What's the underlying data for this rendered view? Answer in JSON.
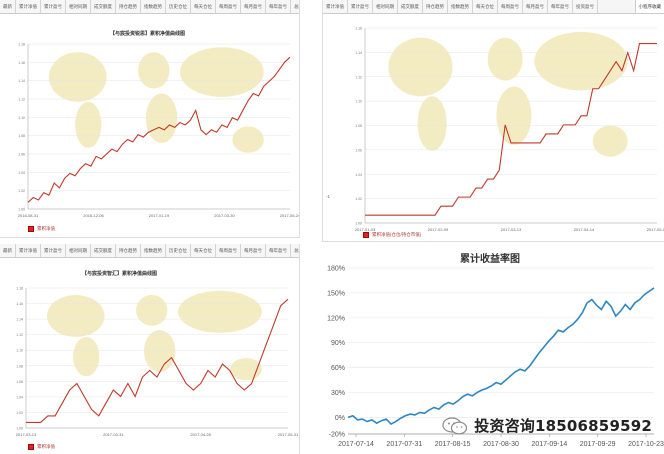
{
  "panel1": {
    "tabs": [
      "最新",
      "累计净值",
      "累计盈亏",
      "相对同期",
      "成交额度",
      "持仓趋势",
      "指数趋势",
      "历史仓位",
      "每天仓位",
      "每周盈亏",
      "每月盈亏",
      "每年盈亏",
      "总结金额",
      "投资盈亏"
    ],
    "end_tab": "收藏量表格",
    "title": "【与宸投资锐思】累积净值曲线图",
    "legend": "累积净值",
    "x_ticks": [
      "2016-08-31",
      "2016-12-06",
      "2017-01-19",
      "2017-03-30",
      "2017-05-24"
    ]
  },
  "panel2": {
    "tabs": [
      "累计净值",
      "累计盈亏",
      "相对同期",
      "成交额度",
      "持仓趋势",
      "指数趋势",
      "每天仓位",
      "每周盈亏",
      "每月盈亏",
      "每年盈亏",
      "投资盈亏"
    ],
    "end_tab": "小程序收藏",
    "legend": "累积净值(仓位/持仓市值)",
    "y_side_label": "-1",
    "x_ticks": [
      "2017-01-03",
      "2017-02-09",
      "2017-03-13",
      "2017-04-14",
      "2017-05-17"
    ]
  },
  "panel3": {
    "tabs": [
      "最新",
      "累计净值",
      "累计盈亏",
      "相对同期",
      "成交额度",
      "持仓趋势",
      "指数趋势",
      "历史仓位",
      "每天仓位",
      "每周盈亏",
      "每月盈亏",
      "每年盈亏",
      "总结金额",
      "投资盈亏"
    ],
    "end_tab": "收藏量表格",
    "title": "【与宸投资智汇】累积净值曲线图",
    "legend": "累积净值",
    "x_ticks": [
      "2017-03-13",
      "2017-03-31",
      "2017-04-28",
      "2017-05-31"
    ]
  },
  "panel4": {
    "title": "累计收益率图",
    "watermark": "投资咨询18506859592"
  },
  "colors": {
    "nav_line": "#c0392b",
    "return_line": "#2e86c1",
    "grid": "#e5e5e5",
    "map": "#f3ecc2"
  },
  "chart_data": [
    {
      "type": "line",
      "title": "【与宸投资锐思】累积净值曲线图",
      "series": [
        {
          "name": "累积净值",
          "values": [
            1.0,
            1.02,
            1.01,
            1.04,
            1.03,
            1.08,
            1.06,
            1.1,
            1.12,
            1.11,
            1.14,
            1.16,
            1.15,
            1.19,
            1.18,
            1.2,
            1.22,
            1.21,
            1.24,
            1.26,
            1.25,
            1.28,
            1.27,
            1.29,
            1.3,
            1.31,
            1.3,
            1.32,
            1.31,
            1.33,
            1.32,
            1.34,
            1.38,
            1.3,
            1.28,
            1.3,
            1.29,
            1.32,
            1.31,
            1.35,
            1.34,
            1.38,
            1.42,
            1.45,
            1.44,
            1.48,
            1.5,
            1.52,
            1.55,
            1.58,
            1.6
          ]
        }
      ],
      "x_ticks": [
        "2016-08-31",
        "2016-12-06",
        "2017-01-19",
        "2017-03-30",
        "2017-05-24"
      ],
      "legend": "top-left bottom"
    },
    {
      "type": "line",
      "series": [
        {
          "name": "累积净值(仓位/持仓市值)",
          "values": [
            0.96,
            0.96,
            0.96,
            0.96,
            0.96,
            0.96,
            0.96,
            0.96,
            0.96,
            0.96,
            0.96,
            0.96,
            0.96,
            0.97,
            0.97,
            0.97,
            0.98,
            0.98,
            0.98,
            0.99,
            0.99,
            1.0,
            1.0,
            1.01,
            1.06,
            1.04,
            1.04,
            1.04,
            1.04,
            1.04,
            1.04,
            1.05,
            1.05,
            1.05,
            1.06,
            1.06,
            1.06,
            1.07,
            1.07,
            1.1,
            1.1,
            1.11,
            1.12,
            1.13,
            1.12,
            1.14,
            1.12,
            1.15,
            1.15,
            1.15,
            1.15
          ]
        }
      ],
      "x_ticks": [
        "2017-01-03",
        "2017-02-09",
        "2017-03-13",
        "2017-04-14",
        "2017-05-17"
      ]
    },
    {
      "type": "line",
      "title": "【与宸投资智汇】累积净值曲线图",
      "series": [
        {
          "name": "累积净值",
          "values": [
            1.0,
            1.0,
            1.0,
            1.01,
            1.01,
            1.03,
            1.05,
            1.06,
            1.04,
            1.02,
            1.01,
            1.03,
            1.05,
            1.04,
            1.06,
            1.04,
            1.07,
            1.08,
            1.07,
            1.09,
            1.1,
            1.08,
            1.06,
            1.05,
            1.06,
            1.08,
            1.07,
            1.09,
            1.08,
            1.06,
            1.05,
            1.06,
            1.09,
            1.12,
            1.15,
            1.18,
            1.19
          ]
        }
      ],
      "x_ticks": [
        "2017-03-13",
        "2017-03-31",
        "2017-04-28",
        "2017-05-31"
      ]
    },
    {
      "type": "line",
      "title": "累计收益率图",
      "ylim": [
        -20,
        180
      ],
      "y_ticks": [
        "-20%",
        "0%",
        "30%",
        "60%",
        "90%",
        "120%",
        "150%",
        "180%"
      ],
      "y_tick_values": [
        -20,
        0,
        30,
        60,
        90,
        120,
        150,
        180
      ],
      "x_ticks": [
        "2017-07-14",
        "2017-07-31",
        "2017-08-15",
        "2017-08-30",
        "2017-09-14",
        "2017-09-29",
        "2017-10-23"
      ],
      "series": [
        {
          "values": [
            0,
            2,
            -3,
            -2,
            -5,
            -3,
            -7,
            -4,
            -2,
            -8,
            -5,
            -1,
            2,
            4,
            3,
            6,
            5,
            9,
            12,
            10,
            15,
            18,
            16,
            20,
            25,
            28,
            26,
            30,
            33,
            35,
            38,
            42,
            40,
            45,
            50,
            55,
            58,
            56,
            62,
            70,
            78,
            85,
            92,
            98,
            105,
            103,
            108,
            112,
            118,
            126,
            138,
            142,
            135,
            130,
            140,
            134,
            122,
            128,
            136,
            130,
            138,
            142,
            148,
            152,
            156
          ]
        }
      ]
    }
  ]
}
